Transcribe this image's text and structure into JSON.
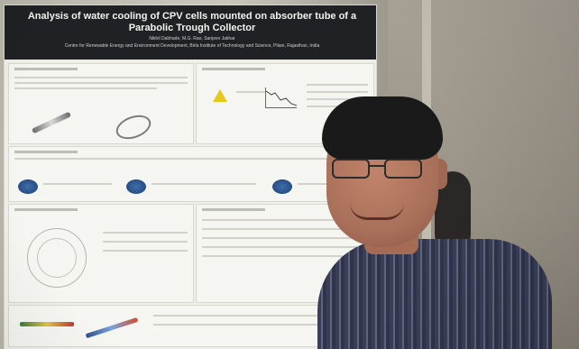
{
  "poster": {
    "title": "Analysis of water cooling of CPV cells mounted on absorber tube of a Parabolic Trough Collector",
    "authors": "Nikhil Dabhade, M.G. Rao, Sanjeev Jakhar",
    "affiliation": "Centre for Renewable Energy and Environment Development, Birla Institute of Technology and Science, Pilani, Rajasthan, India"
  }
}
